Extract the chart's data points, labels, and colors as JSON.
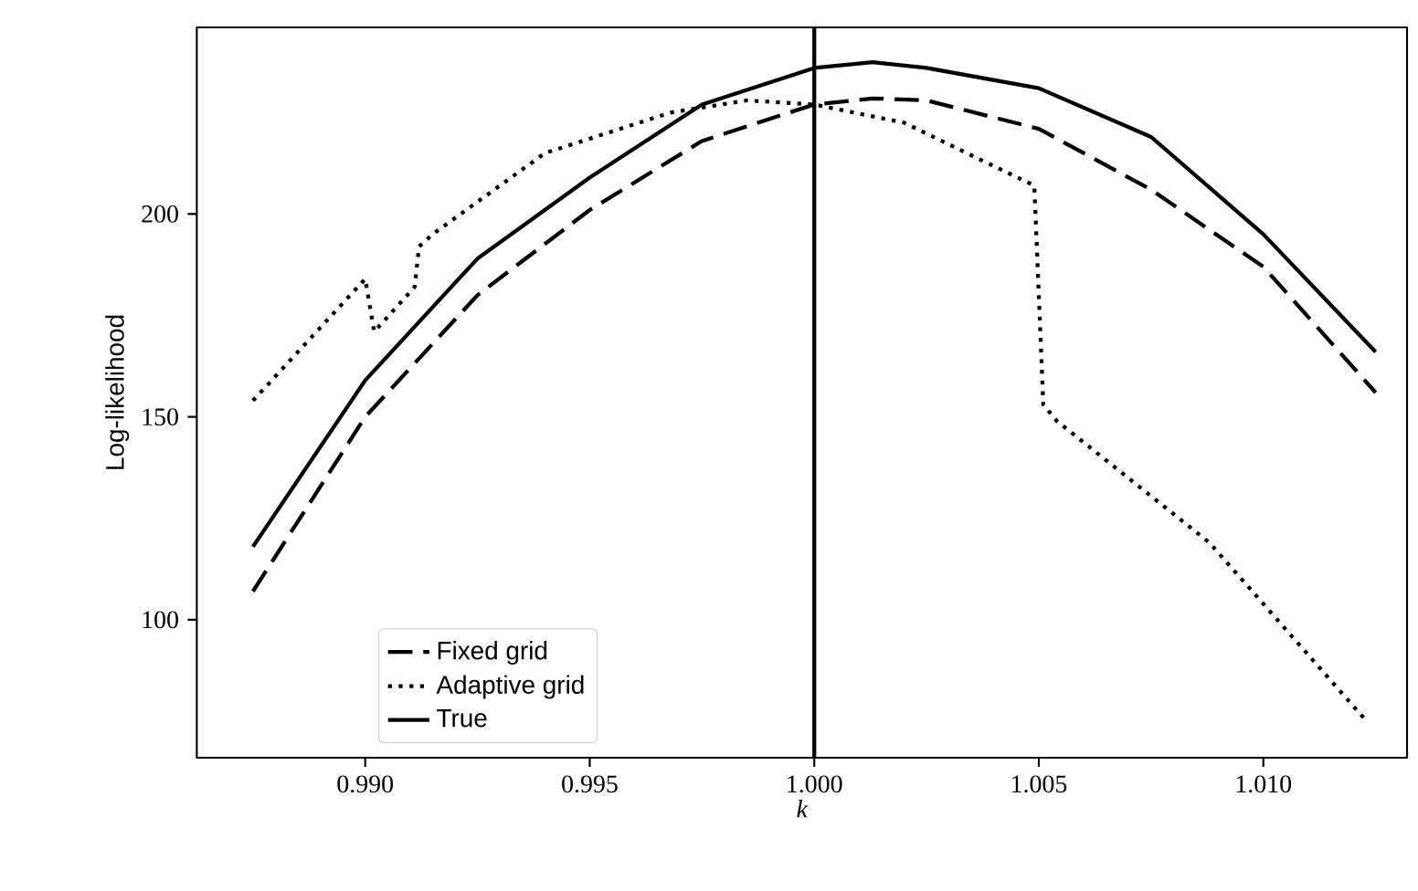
{
  "chart_data": {
    "type": "line",
    "xlabel": "k",
    "ylabel": "Log-likelihood",
    "xlim": [
      0.98625,
      1.0132
    ],
    "ylim": [
      66,
      246
    ],
    "xticks": [
      {
        "value": 0.99,
        "label": "0.990"
      },
      {
        "value": 0.995,
        "label": "0.995"
      },
      {
        "value": 1.0,
        "label": "1.000"
      },
      {
        "value": 1.005,
        "label": "1.005"
      },
      {
        "value": 1.01,
        "label": "1.010"
      }
    ],
    "yticks": [
      100,
      150,
      200
    ],
    "grid": false,
    "legend": "bottom left",
    "marker": "none",
    "ref_lines": [
      {
        "axis": "x",
        "value": 1.0,
        "color": "#000000",
        "line_style": "solid"
      }
    ],
    "series": [
      {
        "name": "Fixed grid",
        "color": "#000000",
        "line_style": "dashed",
        "x": [
          0.9875,
          0.99,
          0.9925,
          0.995,
          0.9975,
          1.0,
          1.0013,
          1.0025,
          1.005,
          1.0075,
          1.01,
          1.0125
        ],
        "values": [
          107,
          150,
          180,
          201,
          218,
          227,
          228.5,
          228,
          221,
          206,
          187,
          156
        ]
      },
      {
        "name": "Adaptive grid",
        "color": "#000000",
        "line_style": "dotted",
        "x": [
          0.9875,
          0.99,
          0.9902,
          0.9911,
          0.9912,
          0.9915,
          0.994,
          0.9968,
          0.9985,
          1.0,
          1.002,
          1.0034,
          1.0049,
          1.0051,
          1.0054,
          1.0088,
          1.0123
        ],
        "values": [
          154,
          184,
          171,
          182,
          192,
          195,
          215,
          225,
          228,
          227,
          222.5,
          215,
          207,
          153,
          149,
          119,
          75
        ]
      },
      {
        "name": "True",
        "color": "#000000",
        "line_style": "solid",
        "x": [
          0.9875,
          0.99,
          0.9925,
          0.995,
          0.9975,
          1.0,
          1.0013,
          1.0025,
          1.005,
          1.0075,
          1.01,
          1.0125
        ],
        "values": [
          118,
          159,
          189,
          209,
          227,
          236,
          237.4,
          236,
          231,
          219,
          195,
          166
        ]
      }
    ]
  }
}
